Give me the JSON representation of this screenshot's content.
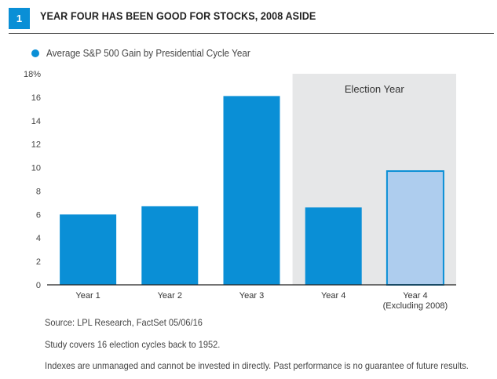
{
  "figure": {
    "number": "1",
    "title": "YEAR FOUR HAS BEEN GOOD FOR STOCKS, 2008 ASIDE"
  },
  "legend": {
    "label": "Average S&P 500 Gain by Presidential Cycle Year"
  },
  "colors": {
    "primary": "#0a8fd6",
    "highlight": "#aecdee",
    "shade": "#e6e7e8"
  },
  "chart_data": {
    "type": "bar",
    "title": "YEAR FOUR HAS BEEN GOOD FOR STOCKS, 2008 ASIDE",
    "categories": [
      {
        "label": "Year 1",
        "sub": ""
      },
      {
        "label": "Year 2",
        "sub": ""
      },
      {
        "label": "Year 3",
        "sub": ""
      },
      {
        "label": "Year 4",
        "sub": ""
      },
      {
        "label": "Year 4",
        "sub": "(Excluding 2008)"
      }
    ],
    "series": [
      {
        "name": "Average S&P 500 Gain by Presidential Cycle Year",
        "values": [
          6.0,
          6.7,
          16.1,
          6.6,
          9.7
        ]
      }
    ],
    "highlight_index": 4,
    "ylim": [
      0,
      18
    ],
    "yticks": [
      0,
      2,
      4,
      6,
      8,
      10,
      12,
      14,
      16,
      18
    ],
    "ytick_labels": [
      "0",
      "2",
      "4",
      "6",
      "8",
      "10",
      "12",
      "14",
      "16",
      "18%"
    ],
    "shaded_region": {
      "from_index": 3,
      "to_index": 4,
      "label": "Election Year"
    },
    "xlabel": "",
    "ylabel": "",
    "grid": false
  },
  "notes": {
    "source": "Source: LPL Research, FactSet   05/06/16",
    "study": "Study covers 16 election cycles back to 1952.",
    "disclaimer": "Indexes are unmanaged and cannot be invested in directly. Past performance is no guarantee of future results."
  }
}
